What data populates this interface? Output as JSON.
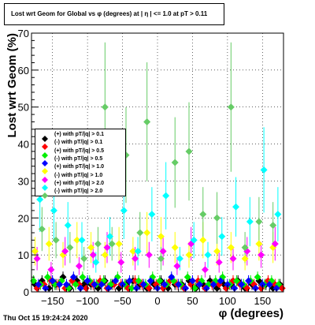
{
  "chart_data": {
    "type": "scatter",
    "title": "Lost wrt Geom for Global vs φ (degrees) at | η | <= 1.0 at pT > 0.11",
    "xlabel": "φ (degrees)",
    "ylabel": "Lost wrt Geom (%)",
    "xlim": [
      -180,
      180
    ],
    "ylim": [
      0,
      70
    ],
    "x_ticks": [
      -150,
      -100,
      -50,
      0,
      50,
      100,
      150
    ],
    "y_ticks": [
      0,
      10,
      20,
      30,
      40,
      50,
      60,
      70
    ],
    "grid": true,
    "legend_position": "left-middle",
    "series": [
      {
        "name": "(+) with pT/|q| > 0.1",
        "color": "#000000",
        "marker": "diamond",
        "x": [
          -175,
          -165,
          -155,
          -145,
          -135,
          -125,
          -115,
          -105,
          -95,
          -85,
          -75,
          -65,
          -55,
          -45,
          -35,
          -25,
          -15,
          -5,
          5,
          15,
          25,
          35,
          45,
          55,
          65,
          75,
          85,
          95,
          105,
          115,
          125,
          135,
          145,
          155,
          165,
          175
        ],
        "y": [
          2,
          3,
          1,
          2,
          4,
          1,
          3,
          2,
          2,
          1,
          3,
          2,
          1,
          2,
          3,
          2,
          1,
          2,
          3,
          1,
          2,
          2,
          3,
          1,
          2,
          3,
          1,
          2,
          2,
          3,
          1,
          2,
          3,
          2,
          1,
          2
        ]
      },
      {
        "name": "(-) with pT/|q| > 0.1",
        "color": "#ff0000",
        "marker": "diamond",
        "x": [
          -172,
          -162,
          -152,
          -142,
          -132,
          -122,
          -112,
          -102,
          -92,
          -82,
          -72,
          -62,
          -52,
          -42,
          -32,
          -22,
          -12,
          -2,
          8,
          18,
          28,
          38,
          48,
          58,
          68,
          78,
          88,
          98,
          108,
          118,
          128,
          138,
          148,
          158,
          168,
          178
        ],
        "y": [
          1,
          2,
          3,
          2,
          1,
          3,
          2,
          1,
          2,
          3,
          1,
          2,
          2,
          1,
          3,
          2,
          1,
          2,
          1,
          3,
          2,
          1,
          2,
          3,
          1,
          2,
          2,
          1,
          3,
          2,
          1,
          2,
          1,
          3,
          2,
          1
        ]
      },
      {
        "name": "(+) with pT/|q| > 0.5",
        "color": "#00ee00",
        "marker": "diamond",
        "x": [
          -177,
          -167,
          -157,
          -147,
          -137,
          -127,
          -117,
          -107,
          -97,
          -87,
          -77,
          -67,
          -57,
          -47,
          -37,
          -27,
          -17,
          -7,
          3,
          13,
          23,
          33,
          43,
          53,
          63,
          73,
          83,
          93,
          103,
          113,
          123,
          133,
          143,
          153,
          163,
          173
        ],
        "y": [
          3,
          2,
          4,
          2,
          3,
          1,
          2,
          4,
          3,
          2,
          3,
          2,
          4,
          2,
          1,
          3,
          2,
          4,
          3,
          2,
          3,
          2,
          4,
          1,
          3,
          2,
          3,
          4,
          2,
          3,
          2,
          3,
          4,
          2,
          3,
          2
        ]
      },
      {
        "name": "(-) with pT/|q| > 0.5",
        "color": "#0000ff",
        "marker": "diamond",
        "x": [
          -170,
          -160,
          -150,
          -140,
          -130,
          -120,
          -110,
          -100,
          -90,
          -80,
          -70,
          -60,
          -50,
          -40,
          -30,
          -20,
          -10,
          0,
          10,
          20,
          30,
          40,
          50,
          60,
          70,
          80,
          90,
          100,
          110,
          120,
          130,
          140,
          150,
          160,
          170
        ],
        "y": [
          2,
          1,
          3,
          2,
          2,
          4,
          1,
          3,
          2,
          2,
          1,
          3,
          2,
          3,
          1,
          2,
          3,
          1,
          2,
          4,
          2,
          1,
          3,
          2,
          1,
          2,
          3,
          2,
          1,
          2,
          3,
          1,
          2,
          2,
          1
        ]
      },
      {
        "name": "(+) with pT/|q| > 1.0",
        "color": "#ffff00",
        "marker": "diamond",
        "x": [
          -175,
          -155,
          -135,
          -115,
          -95,
          -75,
          -55,
          -35,
          -15,
          5,
          25,
          45,
          65,
          85,
          105,
          125,
          145,
          165
        ],
        "y": [
          11,
          13,
          10,
          14,
          12,
          10,
          13,
          11,
          16,
          15,
          12,
          10,
          14,
          11,
          12,
          9,
          13,
          12
        ]
      },
      {
        "name": "(-) with pT/|q| > 1.0",
        "color": "#ff00ff",
        "marker": "diamond",
        "x": [
          -172,
          -152,
          -132,
          -112,
          -92,
          -72,
          -52,
          -32,
          -12,
          8,
          28,
          48,
          68,
          88,
          108,
          128,
          148,
          168
        ],
        "y": [
          9,
          6,
          11,
          7,
          10,
          12,
          8,
          9,
          10,
          11,
          7,
          13,
          6,
          8,
          9,
          11,
          10,
          13
        ]
      },
      {
        "name": "(+) with pT/|q| > 2.0",
        "color": "#00ffff",
        "marker": "diamond",
        "x": [
          -168,
          -148,
          -128,
          -108,
          -88,
          -68,
          -48,
          -28,
          -8,
          12,
          32,
          52,
          72,
          92,
          112,
          132,
          152,
          172
        ],
        "y": [
          25,
          22,
          18,
          14,
          8,
          15,
          22,
          11,
          21,
          26,
          9,
          14,
          10,
          15,
          23,
          19,
          33,
          21
        ]
      },
      {
        "name": "(-) with pT/|q| > 2.0",
        "color": "#66cc66",
        "marker": "diamond",
        "x": [
          -165,
          -145,
          -125,
          -105,
          -85,
          -75,
          -65,
          -45,
          -25,
          -15,
          5,
          25,
          45,
          65,
          85,
          105,
          125,
          145,
          165
        ],
        "y": [
          17,
          14,
          12,
          9,
          13,
          50,
          13,
          37,
          16,
          46,
          9,
          35,
          38,
          21,
          20,
          50,
          12,
          19,
          18
        ]
      }
    ]
  },
  "timestamp": "Thu Oct 15 19:24:24 2020"
}
